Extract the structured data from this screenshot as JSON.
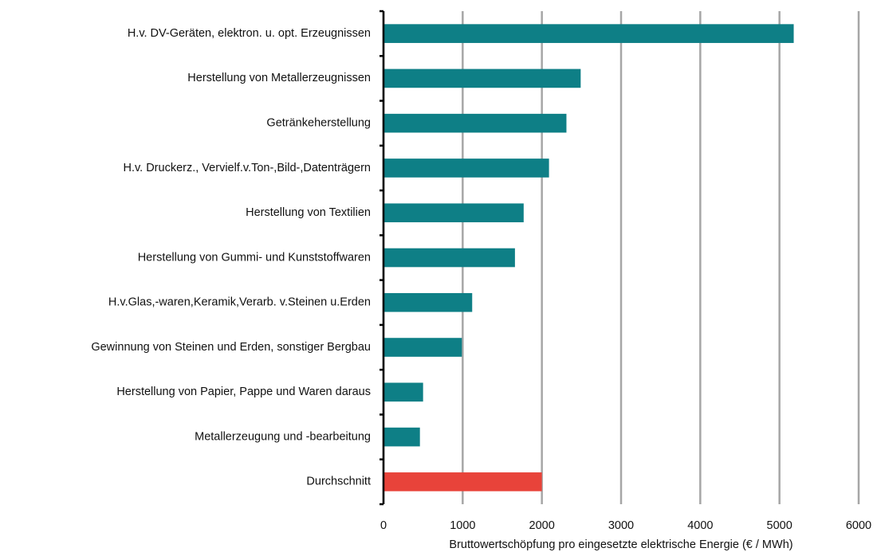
{
  "chart_data": {
    "type": "bar",
    "orientation": "horizontal",
    "categories": [
      "H.v. DV-Geräten, elektron. u. opt. Erzeugnissen",
      "Herstellung von Metallerzeugnissen",
      "Getränkeherstellung",
      "H.v. Druckerz., Vervielf.v.Ton-,Bild-,Datenträgern",
      "Herstellung von Textilien",
      "Herstellung von Gummi- und Kunststoffwaren",
      "H.v.Glas,-waren,Keramik,Verarb. v.Steinen u.Erden",
      "Gewinnung von Steinen und Erden, sonstiger Bergbau",
      "Herstellung von Papier, Pappe und Waren daraus",
      "Metallerzeugung und -bearbeitung",
      "Durchschnitt"
    ],
    "values": [
      5180,
      2490,
      2310,
      2090,
      1770,
      1660,
      1120,
      990,
      500,
      460,
      2000
    ],
    "colors": [
      "#0e7f86",
      "#0e7f86",
      "#0e7f86",
      "#0e7f86",
      "#0e7f86",
      "#0e7f86",
      "#0e7f86",
      "#0e7f86",
      "#0e7f86",
      "#0e7f86",
      "#e8433a"
    ],
    "xlabel": "Bruttowertschöpfung pro eingesetzte elektrische Energie (€ / MWh)",
    "xlim": [
      0,
      6000
    ],
    "xticks": [
      0,
      1000,
      2000,
      3000,
      4000,
      5000,
      6000
    ],
    "grid": true
  }
}
